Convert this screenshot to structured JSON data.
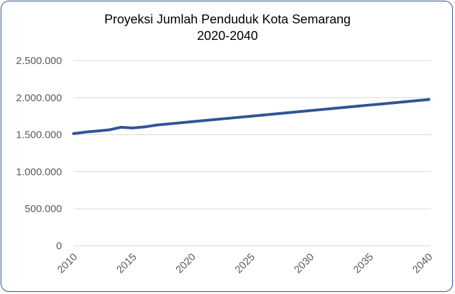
{
  "chart_data": {
    "type": "line",
    "title_line1": "Proyeksi Jumlah Penduduk Kota Semarang",
    "title_line2": "2020-2040",
    "xlabel": "",
    "ylabel": "",
    "ylim": [
      0,
      2500000
    ],
    "y_ticks": [
      {
        "value": 0,
        "label": "0"
      },
      {
        "value": 500000,
        "label": "500.000"
      },
      {
        "value": 1000000,
        "label": "1.000.000"
      },
      {
        "value": 1500000,
        "label": "1.500.000"
      },
      {
        "value": 2000000,
        "label": "2.000.000"
      },
      {
        "value": 2500000,
        "label": "2.500.000"
      }
    ],
    "xlim": [
      2010,
      2040
    ],
    "x_ticks": [
      2010,
      2015,
      2020,
      2025,
      2030,
      2035,
      2040
    ],
    "grid": true,
    "legend": "none",
    "series": [
      {
        "color": "#2f5597",
        "x": [
          2010,
          2011,
          2012,
          2013,
          2014,
          2015,
          2016,
          2017,
          2018,
          2019,
          2020,
          2021,
          2022,
          2023,
          2024,
          2025,
          2026,
          2027,
          2028,
          2029,
          2030,
          2031,
          2032,
          2033,
          2034,
          2035,
          2036,
          2037,
          2038,
          2039,
          2040
        ],
        "values": [
          1515000,
          1535000,
          1550000,
          1565000,
          1600000,
          1590000,
          1605000,
          1630000,
          1645000,
          1660000,
          1675000,
          1690000,
          1705000,
          1720000,
          1735000,
          1750000,
          1765000,
          1780000,
          1795000,
          1810000,
          1825000,
          1840000,
          1855000,
          1870000,
          1885000,
          1900000,
          1915000,
          1930000,
          1945000,
          1960000,
          1975000
        ]
      }
    ]
  }
}
